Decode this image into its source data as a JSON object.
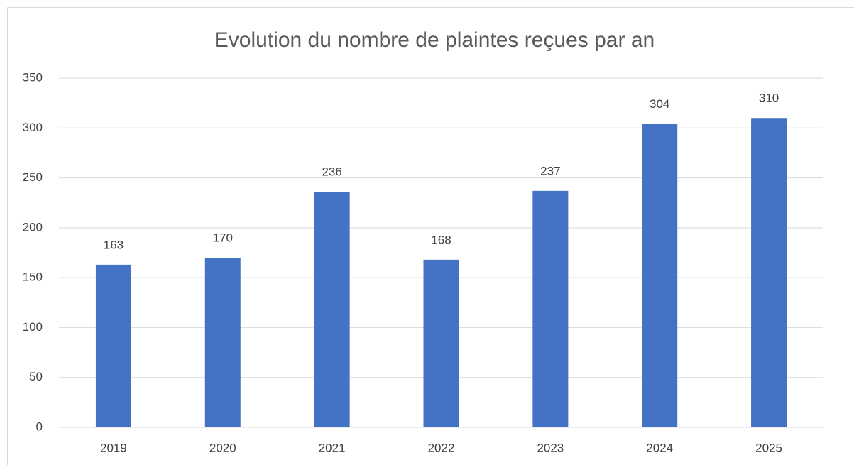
{
  "chart_data": {
    "type": "bar",
    "title": "Evolution du nombre de plaintes reçues par an",
    "categories": [
      "2019",
      "2020",
      "2021",
      "2022",
      "2023",
      "2024",
      "2025"
    ],
    "values": [
      163,
      170,
      236,
      168,
      237,
      304,
      310
    ],
    "color": "#4472c4",
    "ylim": [
      0,
      350
    ],
    "yticks": [
      0,
      50,
      100,
      150,
      200,
      250,
      300,
      350
    ],
    "grid": true
  }
}
